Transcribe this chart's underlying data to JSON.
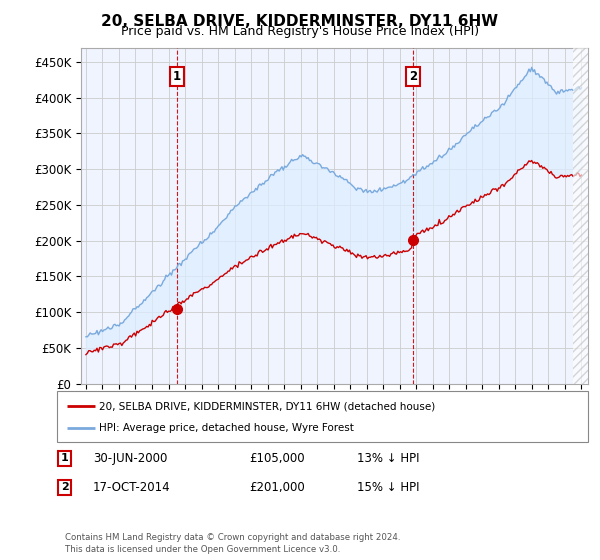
{
  "title": "20, SELBA DRIVE, KIDDERMINSTER, DY11 6HW",
  "subtitle": "Price paid vs. HM Land Registry's House Price Index (HPI)",
  "ylim": [
    0,
    470000
  ],
  "yticks": [
    0,
    50000,
    100000,
    150000,
    200000,
    250000,
    300000,
    350000,
    400000,
    450000
  ],
  "ytick_labels": [
    "£0",
    "£50K",
    "£100K",
    "£150K",
    "£200K",
    "£250K",
    "£300K",
    "£350K",
    "£400K",
    "£450K"
  ],
  "xmin": 1995,
  "xmax": 2025,
  "sale1_year": 2000.5,
  "sale1_price": 105000,
  "sale1_date_str": "30-JUN-2000",
  "sale2_year": 2014.8,
  "sale2_price": 201000,
  "sale2_date_str": "17-OCT-2014",
  "sale1_hpi_diff": "13% ↓ HPI",
  "sale2_hpi_diff": "15% ↓ HPI",
  "line_color_property": "#cc0000",
  "line_color_hpi": "#7aaadd",
  "fill_color": "#ddeeff",
  "legend_label_property": "20, SELBA DRIVE, KIDDERMINSTER, DY11 6HW (detached house)",
  "legend_label_hpi": "HPI: Average price, detached house, Wyre Forest",
  "footnote1": "Contains HM Land Registry data © Crown copyright and database right 2024.",
  "footnote2": "This data is licensed under the Open Government Licence v3.0.",
  "vline_color": "#cc0000",
  "background_color": "#ffffff",
  "grid_color": "#cccccc",
  "plot_bg_color": "#f0f4ff"
}
